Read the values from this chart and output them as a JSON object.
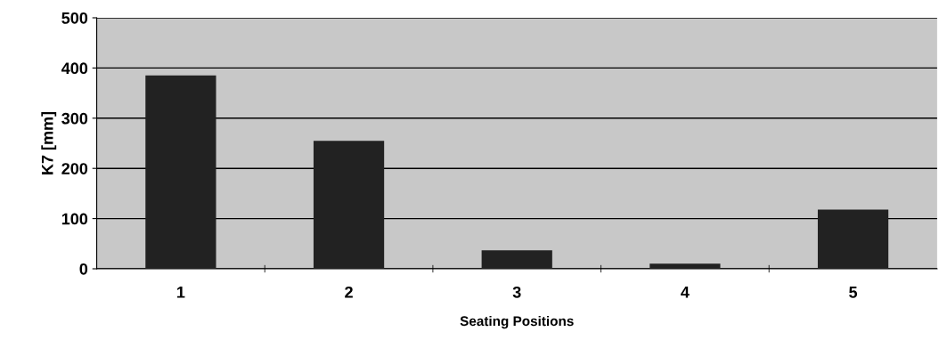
{
  "chart_data": {
    "type": "bar",
    "xlabel": "Seating Positions",
    "ylabel": "K7 [mm]",
    "categories": [
      "1",
      "2",
      "3",
      "4",
      "5"
    ],
    "values": [
      385,
      255,
      37,
      10,
      118
    ],
    "color": "#222222",
    "ylim": [
      0,
      500
    ],
    "yticks": [
      0,
      100,
      200,
      300,
      400,
      500
    ],
    "grid": "y"
  }
}
